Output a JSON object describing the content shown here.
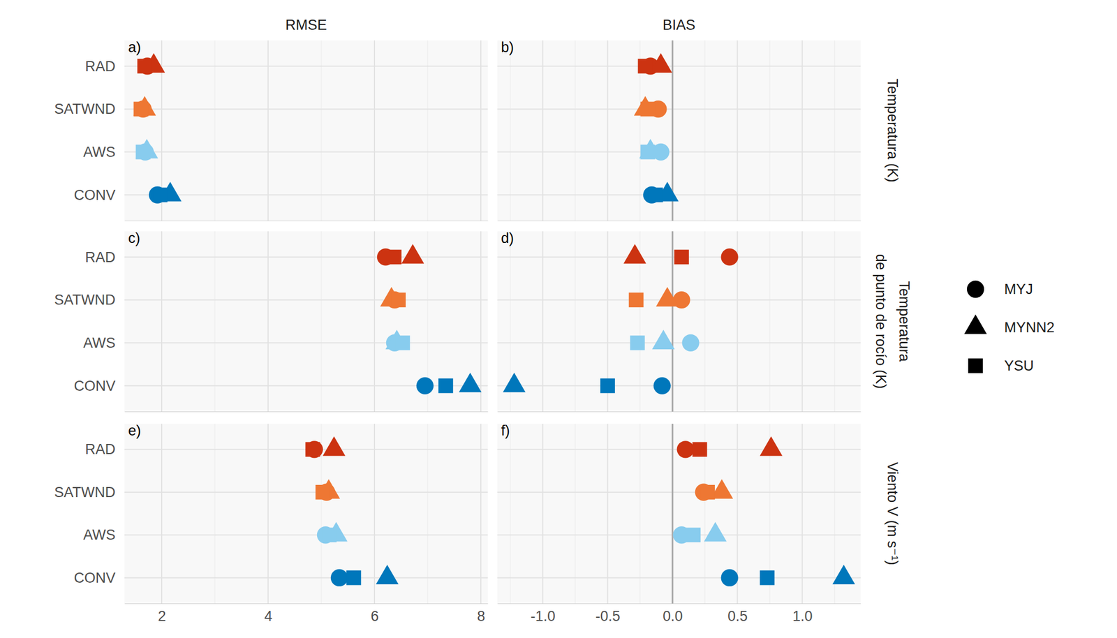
{
  "facet_columns": [
    "RMSE",
    "BIAS"
  ],
  "facet_rows": [
    "Temperatura (K)",
    "Temperatura\nde punto de rocío (K)",
    "Viento V (m s⁻¹)"
  ],
  "chart_data": [
    {
      "type": "scatter",
      "title": "a)",
      "categories": [
        "RAD",
        "SATWND",
        "AWS",
        "CONV"
      ],
      "colors": [
        "#CC3311",
        "#EE7733",
        "#88CCEE",
        "#0077BB"
      ],
      "series": [
        {
          "name": "MYJ",
          "marker": "circle",
          "values": [
            1.73,
            1.65,
            1.69,
            1.92
          ]
        },
        {
          "name": "MYNN2",
          "marker": "triangle",
          "values": [
            1.85,
            1.68,
            1.72,
            2.16
          ]
        },
        {
          "name": "YSU",
          "marker": "square",
          "values": [
            1.68,
            1.61,
            1.65,
            1.97
          ]
        }
      ],
      "xlim": [
        1.3,
        8.13
      ],
      "xticks": [
        2,
        4,
        6,
        8
      ],
      "grid": true,
      "tick_labels": "y",
      "legend": "right"
    },
    {
      "type": "scatter",
      "title": "b)",
      "categories": [
        "RAD",
        "SATWND",
        "AWS",
        "CONV"
      ],
      "colors": [
        "#CC3311",
        "#EE7733",
        "#88CCEE",
        "#0077BB"
      ],
      "series": [
        {
          "name": "MYJ",
          "marker": "circle",
          "values": [
            -0.17,
            -0.11,
            -0.09,
            -0.16
          ]
        },
        {
          "name": "MYNN2",
          "marker": "triangle",
          "values": [
            -0.09,
            -0.21,
            -0.17,
            -0.04
          ]
        },
        {
          "name": "YSU",
          "marker": "square",
          "values": [
            -0.21,
            -0.19,
            -0.19,
            -0.13
          ]
        }
      ],
      "xlim": [
        -1.35,
        1.45
      ],
      "xticks": [
        {
          "value": -1,
          "label": "-1.0"
        },
        -0.5,
        {
          "value": 0,
          "label": "0.0"
        },
        0.5,
        {
          "value": 1,
          "label": "1.0"
        }
      ],
      "grid": true,
      "tick_labels": false
    },
    {
      "type": "scatter",
      "title": "c)",
      "categories": [
        "RAD",
        "SATWND",
        "AWS",
        "CONV"
      ],
      "colors": [
        "#CC3311",
        "#EE7733",
        "#88CCEE",
        "#0077BB"
      ],
      "series": [
        {
          "name": "MYJ",
          "marker": "circle",
          "values": [
            6.21,
            6.38,
            6.38,
            6.95
          ]
        },
        {
          "name": "MYNN2",
          "marker": "triangle",
          "values": [
            6.72,
            6.32,
            6.42,
            7.8
          ]
        },
        {
          "name": "YSU",
          "marker": "square",
          "values": [
            6.37,
            6.45,
            6.53,
            7.34
          ]
        }
      ],
      "xlim": [
        1.3,
        8.13
      ],
      "xticks": [
        2,
        4,
        6,
        8
      ],
      "grid": true,
      "tick_labels": "y"
    },
    {
      "type": "scatter",
      "title": "d)",
      "categories": [
        "RAD",
        "SATWND",
        "AWS",
        "CONV"
      ],
      "colors": [
        "#CC3311",
        "#EE7733",
        "#88CCEE",
        "#0077BB"
      ],
      "series": [
        {
          "name": "MYJ",
          "marker": "circle",
          "values": [
            0.44,
            0.07,
            0.14,
            -0.08
          ]
        },
        {
          "name": "MYNN2",
          "marker": "triangle",
          "values": [
            -0.29,
            -0.04,
            -0.07,
            -1.22
          ]
        },
        {
          "name": "YSU",
          "marker": "square",
          "values": [
            0.07,
            -0.28,
            -0.27,
            -0.5
          ]
        }
      ],
      "xlim": [
        -1.35,
        1.45
      ],
      "xticks": [
        {
          "value": -1,
          "label": "-1.0"
        },
        -0.5,
        {
          "value": 0,
          "label": "0.0"
        },
        0.5,
        {
          "value": 1,
          "label": "1.0"
        }
      ],
      "grid": true,
      "tick_labels": false
    },
    {
      "type": "scatter",
      "title": "e)",
      "categories": [
        "RAD",
        "SATWND",
        "AWS",
        "CONV"
      ],
      "colors": [
        "#CC3311",
        "#EE7733",
        "#88CCEE",
        "#0077BB"
      ],
      "series": [
        {
          "name": "MYJ",
          "marker": "circle",
          "values": [
            4.87,
            5.1,
            5.08,
            5.34
          ]
        },
        {
          "name": "MYNN2",
          "marker": "triangle",
          "values": [
            5.24,
            5.14,
            5.28,
            6.24
          ]
        },
        {
          "name": "YSU",
          "marker": "square",
          "values": [
            4.84,
            5.03,
            5.15,
            5.61
          ]
        }
      ],
      "xlim": [
        1.3,
        8.13
      ],
      "xticks": [
        2,
        4,
        6,
        8
      ],
      "grid": true,
      "tick_labels": true
    },
    {
      "type": "scatter",
      "title": "f)",
      "categories": [
        "RAD",
        "SATWND",
        "AWS",
        "CONV"
      ],
      "colors": [
        "#CC3311",
        "#EE7733",
        "#88CCEE",
        "#0077BB"
      ],
      "series": [
        {
          "name": "MYJ",
          "marker": "circle",
          "values": [
            0.1,
            0.24,
            0.07,
            0.44
          ]
        },
        {
          "name": "MYNN2",
          "marker": "triangle",
          "values": [
            0.76,
            0.38,
            0.33,
            1.32
          ]
        },
        {
          "name": "YSU",
          "marker": "square",
          "values": [
            0.21,
            0.27,
            0.16,
            0.73
          ]
        }
      ],
      "xlim": [
        -1.35,
        1.45
      ],
      "xticks": [
        {
          "value": -1,
          "label": "-1.0"
        },
        -0.5,
        {
          "value": 0,
          "label": "0.0"
        },
        0.5,
        {
          "value": 1,
          "label": "1.0"
        }
      ],
      "grid": true,
      "tick_labels": "x"
    }
  ]
}
